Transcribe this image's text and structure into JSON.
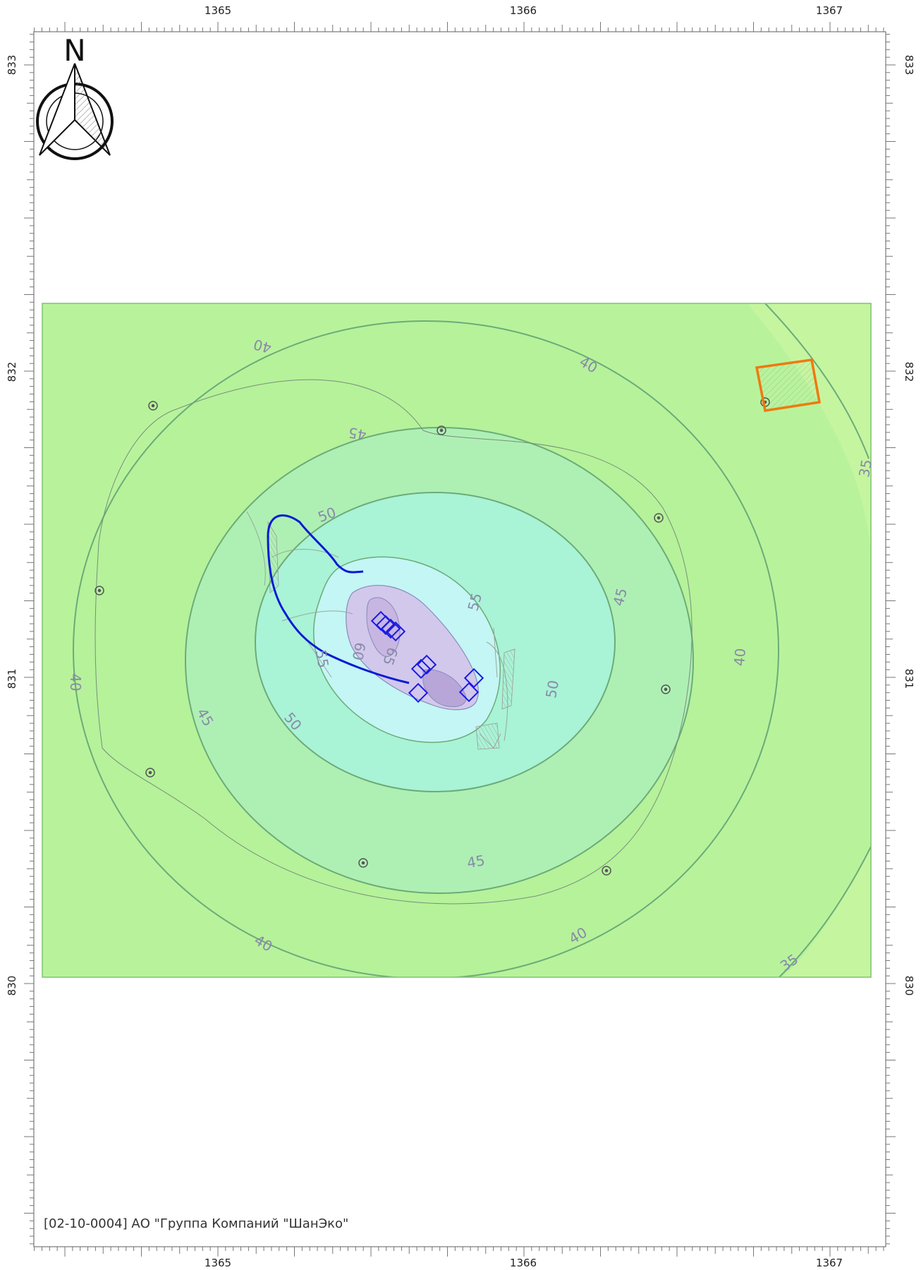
{
  "axes": {
    "x_ticks": [
      "1365",
      "1366",
      "1367"
    ],
    "y_ticks": [
      "833",
      "832",
      "831",
      "830"
    ]
  },
  "compass": {
    "label": "N"
  },
  "contours": [
    {
      "level": "35",
      "color": "#c6f5a0"
    },
    {
      "level": "40",
      "color": "#b5f29a"
    },
    {
      "level": "45",
      "color": "#aef0b4"
    },
    {
      "level": "50",
      "color": "#a9f3d6"
    },
    {
      "level": "55",
      "color": "#c3f6f4"
    },
    {
      "level": "60",
      "color": "#d2c8ec"
    },
    {
      "level": "65",
      "color": "#c7b6e2"
    }
  ],
  "colors": {
    "frame": "#777777",
    "isoline": "#6cab78",
    "source_marker": "#1a1ae6",
    "sanitary_zone": "#0a1ad4",
    "object_outline": "#ee7a10",
    "checkpoint": "#555555"
  },
  "footer": {
    "text": "[02-10-0004] АО \"Группа Компаний \"ШанЭко\""
  }
}
